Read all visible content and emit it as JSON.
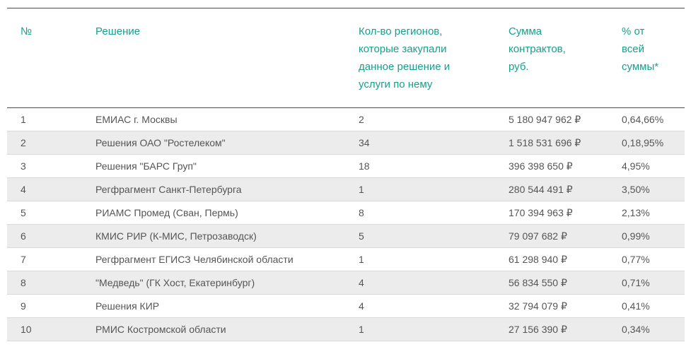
{
  "table": {
    "headers": {
      "num": "№",
      "solution": "Решение",
      "regions": "Кол-во регионов,\nкоторые закупали\nданное решение и\nуслуги по нему",
      "sum": "Сумма\nконтрактов,\nруб.",
      "percent": "% от\nвсей\nсуммы*"
    },
    "rows": [
      {
        "num": "1",
        "solution": "ЕМИАС г. Москвы",
        "regions": "2",
        "sum": "5 180 947 962 ₽",
        "percent": "0,64,66%"
      },
      {
        "num": "2",
        "solution": "Решения ОАО \"Ростелеком\"",
        "regions": "34",
        "sum": "1 518 531 696 ₽",
        "percent": "0,18,95%"
      },
      {
        "num": "3",
        "solution": "Решения \"БАРС Груп\"",
        "regions": "18",
        "sum": "396 398 650 ₽",
        "percent": "4,95%"
      },
      {
        "num": "4",
        "solution": "Регфрагмент Санкт-Петербурга",
        "regions": "1",
        "sum": "280 544 491 ₽",
        "percent": "3,50%"
      },
      {
        "num": "5",
        "solution": "РИАМС Промед (Сван, Пермь)",
        "regions": "8",
        "sum": "170 394 963 ₽",
        "percent": "2,13%"
      },
      {
        "num": "6",
        "solution": "КМИС РИР (К-МИС, Петрозаводск)",
        "regions": "5",
        "sum": "79 097 682 ₽",
        "percent": "0,99%"
      },
      {
        "num": "7",
        "solution": "Регфрагмент ЕГИСЗ Челябинской области",
        "regions": "1",
        "sum": "61 298 940 ₽",
        "percent": "0,77%"
      },
      {
        "num": "8",
        "solution": "\"Медведь\" (ГК Хост, Екатеринбург)",
        "regions": "4",
        "sum": "56 834 550 ₽",
        "percent": "0,71%"
      },
      {
        "num": "9",
        "solution": "Решения КИР",
        "regions": "4",
        "sum": "32 794 079 ₽",
        "percent": "0,41%"
      },
      {
        "num": "10",
        "solution": "РМИС Костромской области",
        "regions": "1",
        "sum": "27 156 390 ₽",
        "percent": "0,34%"
      }
    ]
  },
  "colors": {
    "header_text": "#16a08d",
    "body_text": "#555555",
    "stripe": "#ececec",
    "rule": "#4a4a4a"
  }
}
